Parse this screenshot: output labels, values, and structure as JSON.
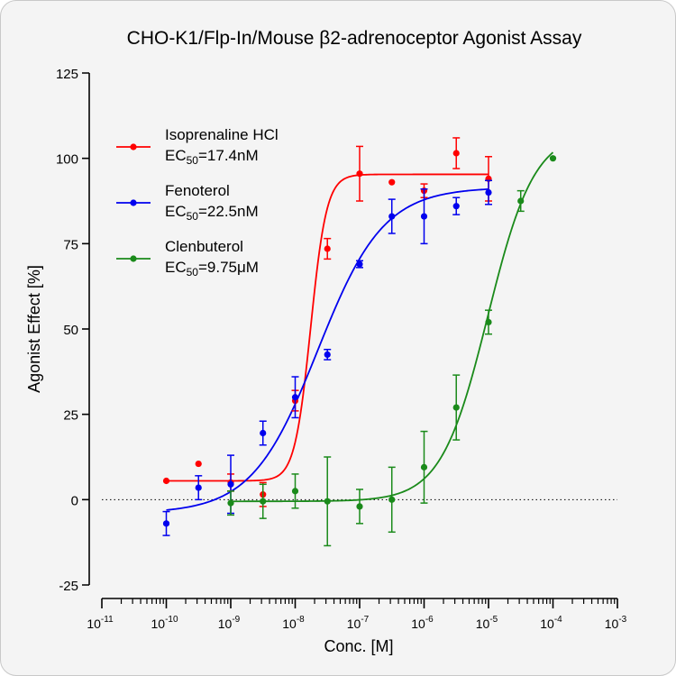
{
  "chart_data": {
    "type": "scatter",
    "title": "CHO-K1/Flp-In/Mouse β2-adrenoceptor Agonist Assay",
    "xlabel": "Conc. [M]",
    "ylabel": "Agonist Effect [%]",
    "x_scale": "log",
    "xlim": [
      1e-11,
      0.001
    ],
    "ylim": [
      -25,
      125
    ],
    "x_tick_labels": [
      {
        "base": "10",
        "exp": "-11"
      },
      {
        "base": "10",
        "exp": "-10"
      },
      {
        "base": "10",
        "exp": "-9"
      },
      {
        "base": "10",
        "exp": "-8"
      },
      {
        "base": "10",
        "exp": "-7"
      },
      {
        "base": "10",
        "exp": "-6"
      },
      {
        "base": "10",
        "exp": "-5"
      },
      {
        "base": "10",
        "exp": "-4"
      },
      {
        "base": "10",
        "exp": "-3"
      }
    ],
    "y_tick_labels": [
      "-25",
      "0",
      "25",
      "50",
      "75",
      "100",
      "125"
    ],
    "baseline_y": 0,
    "legend_position": "top-left",
    "series": [
      {
        "name": "Isoprenaline HCl",
        "ec50_label": {
          "prefix": "EC",
          "sub": "50",
          "suffix": "=17.4nM"
        },
        "color": "#ff0000",
        "points": [
          {
            "x": 1e-10,
            "y": 5.5,
            "err": 0
          },
          {
            "x": 3.16e-10,
            "y": 10.5,
            "err": 0
          },
          {
            "x": 1e-09,
            "y": 5,
            "err": 2.5
          },
          {
            "x": 3.16e-09,
            "y": 1.5,
            "err": 3.5
          },
          {
            "x": 1e-08,
            "y": 29,
            "err": 3
          },
          {
            "x": 3.16e-08,
            "y": 73.5,
            "err": 3
          },
          {
            "x": 1e-07,
            "y": 95.5,
            "err": 8
          },
          {
            "x": 3.16e-07,
            "y": 93,
            "err": 0
          },
          {
            "x": 1e-06,
            "y": 90.5,
            "err": 2
          },
          {
            "x": 3.16e-06,
            "y": 101.5,
            "err": 4.5
          },
          {
            "x": 1e-05,
            "y": 94,
            "err": 6.5
          }
        ],
        "fit": {
          "bottom": 5.5,
          "top": 95.3,
          "log_ec50": -7.76,
          "hill": 3.5,
          "x_range": [
            1e-10,
            1e-05
          ]
        }
      },
      {
        "name": "Fenoterol",
        "ec50_label": {
          "prefix": "EC",
          "sub": "50",
          "suffix": "=22.5nM"
        },
        "color": "#0000ee",
        "points": [
          {
            "x": 1e-10,
            "y": -7,
            "err": 3.5
          },
          {
            "x": 3.16e-10,
            "y": 3.5,
            "err": 3.5
          },
          {
            "x": 1e-09,
            "y": 4.5,
            "err": 8.5
          },
          {
            "x": 3.16e-09,
            "y": 19.5,
            "err": 3.5
          },
          {
            "x": 1e-08,
            "y": 30,
            "err": 6
          },
          {
            "x": 3.16e-08,
            "y": 42.5,
            "err": 1.5
          },
          {
            "x": 1e-07,
            "y": 69,
            "err": 1
          },
          {
            "x": 3.16e-07,
            "y": 83,
            "err": 5
          },
          {
            "x": 1e-06,
            "y": 83,
            "err": 8
          },
          {
            "x": 3.16e-06,
            "y": 86,
            "err": 2.5
          },
          {
            "x": 1e-05,
            "y": 90,
            "err": 3.5
          }
        ],
        "fit": {
          "bottom": -4,
          "top": 91.5,
          "log_ec50": -7.65,
          "hill": 0.85,
          "x_range": [
            1e-10,
            1e-05
          ]
        }
      },
      {
        "name": "Clenbuterol",
        "ec50_label": {
          "prefix": "EC",
          "sub": "50",
          "suffix": "=9.75μM"
        },
        "color": "#1a8a1a",
        "points": [
          {
            "x": 1e-09,
            "y": -1,
            "err": 3.5
          },
          {
            "x": 3.16e-09,
            "y": -0.5,
            "err": 5
          },
          {
            "x": 1e-08,
            "y": 2.5,
            "err": 5
          },
          {
            "x": 3.16e-08,
            "y": -0.5,
            "err": 13
          },
          {
            "x": 1e-07,
            "y": -2,
            "err": 5
          },
          {
            "x": 3.16e-07,
            "y": 0,
            "err": 9.5
          },
          {
            "x": 1e-06,
            "y": 9.5,
            "err": 10.5
          },
          {
            "x": 3.16e-06,
            "y": 27,
            "err": 9.5
          },
          {
            "x": 1e-05,
            "y": 52,
            "err": 3.5
          },
          {
            "x": 3.16e-05,
            "y": 87.5,
            "err": 3
          },
          {
            "x": 0.0001,
            "y": 100,
            "err": 0
          }
        ],
        "fit": {
          "bottom": -0.5,
          "top": 108,
          "log_ec50": -5.011,
          "hill": 1.2,
          "x_range": [
            1e-09,
            0.0001
          ]
        }
      }
    ]
  }
}
